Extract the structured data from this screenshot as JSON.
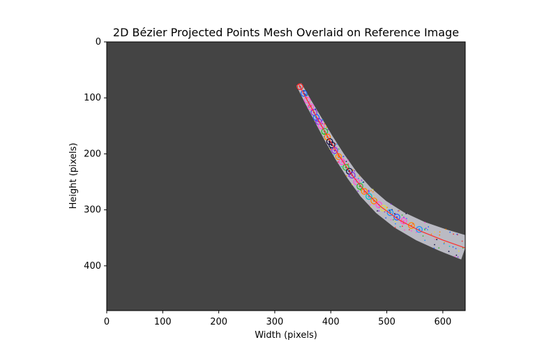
{
  "chart_data": {
    "type": "scatter",
    "title": "2D Bézier Projected Points Mesh Overlaid on Reference Image",
    "xlabel": "Width (pixels)",
    "ylabel": "Height (pixels)",
    "xlim": [
      0,
      640
    ],
    "ylim": [
      480,
      0
    ],
    "x_ticks": [
      0,
      100,
      200,
      300,
      400,
      500,
      600
    ],
    "y_ticks": [
      0,
      100,
      200,
      300,
      400
    ],
    "grid": false,
    "background_color": "#444444",
    "band_color": "#c8c8d2",
    "curve_color": "#ff2a2a",
    "centerline": {
      "name": "",
      "points": [
        [
          343,
          76
        ],
        [
          360,
          108
        ],
        [
          378,
          140
        ],
        [
          396,
          172
        ],
        [
          416,
          205
        ],
        [
          438,
          238
        ],
        [
          462,
          268
        ],
        [
          490,
          295
        ],
        [
          522,
          318
        ],
        [
          560,
          338
        ],
        [
          600,
          354
        ],
        [
          640,
          368
        ]
      ]
    },
    "band": {
      "half_width": [
        5,
        6,
        7,
        8,
        9,
        10,
        12,
        14,
        16,
        18,
        20,
        22
      ]
    },
    "marker_colors": [
      "#ff4fd8",
      "#2060ff",
      "#30c030",
      "#ff8a00",
      "#8a2be2",
      "#00c8c8",
      "#ff2a2a",
      "#101040",
      "#e0e040",
      "#1e90ff"
    ],
    "markers": [
      {
        "x": 345,
        "y": 80,
        "c": 6
      },
      {
        "x": 352,
        "y": 92,
        "c": 1
      },
      {
        "x": 358,
        "y": 104,
        "c": 0
      },
      {
        "x": 364,
        "y": 116,
        "c": 0
      },
      {
        "x": 370,
        "y": 126,
        "c": 4
      },
      {
        "x": 374,
        "y": 135,
        "c": 1
      },
      {
        "x": 378,
        "y": 142,
        "c": 4
      },
      {
        "x": 383,
        "y": 150,
        "c": 0
      },
      {
        "x": 389,
        "y": 160,
        "c": 2
      },
      {
        "x": 394,
        "y": 170,
        "c": 3
      },
      {
        "x": 398,
        "y": 178,
        "c": 7
      },
      {
        "x": 402,
        "y": 184,
        "c": 7
      },
      {
        "x": 407,
        "y": 194,
        "c": 4
      },
      {
        "x": 414,
        "y": 205,
        "c": 3
      },
      {
        "x": 420,
        "y": 214,
        "c": 0
      },
      {
        "x": 427,
        "y": 224,
        "c": 2
      },
      {
        "x": 433,
        "y": 231,
        "c": 7
      },
      {
        "x": 438,
        "y": 238,
        "c": 4
      },
      {
        "x": 446,
        "y": 250,
        "c": 0
      },
      {
        "x": 452,
        "y": 258,
        "c": 2
      },
      {
        "x": 460,
        "y": 267,
        "c": 3
      },
      {
        "x": 468,
        "y": 276,
        "c": 5
      },
      {
        "x": 477,
        "y": 284,
        "c": 3
      },
      {
        "x": 486,
        "y": 291,
        "c": 0
      },
      {
        "x": 494,
        "y": 297,
        "c": 8
      },
      {
        "x": 506,
        "y": 305,
        "c": 9
      },
      {
        "x": 518,
        "y": 313,
        "c": 1
      },
      {
        "x": 530,
        "y": 320,
        "c": 0
      },
      {
        "x": 544,
        "y": 328,
        "c": 3
      },
      {
        "x": 558,
        "y": 335,
        "c": 9
      }
    ]
  }
}
